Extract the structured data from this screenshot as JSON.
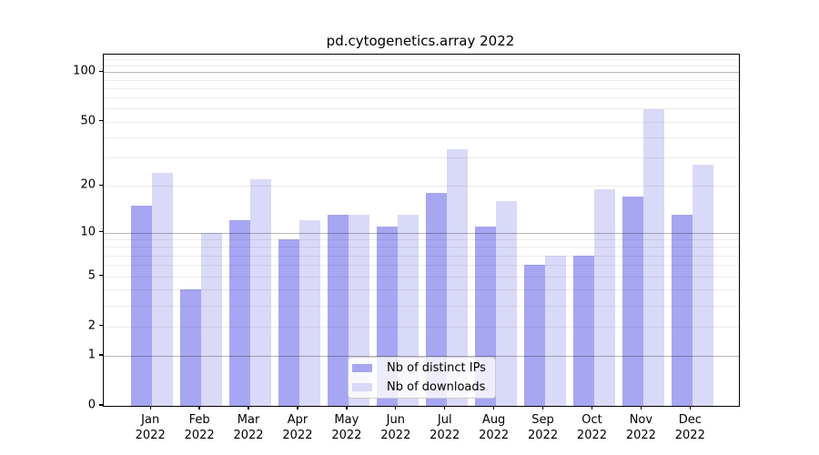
{
  "chart_data": {
    "type": "bar",
    "title": "pd.cytogenetics.array 2022",
    "categories": [
      "Jan 2022",
      "Feb 2022",
      "Mar 2022",
      "Apr 2022",
      "May 2022",
      "Jun 2022",
      "Jul 2022",
      "Aug 2022",
      "Sep 2022",
      "Oct 2022",
      "Nov 2022",
      "Dec 2022"
    ],
    "series": [
      {
        "name": "Nb of distinct IPs",
        "color": "#a6a6f2",
        "values": [
          15,
          4,
          12,
          9,
          13,
          11,
          18,
          11,
          6,
          7,
          17,
          13
        ]
      },
      {
        "name": "Nb of downloads",
        "color": "#d9d9f8",
        "values": [
          24,
          10,
          22,
          12,
          13,
          13,
          34,
          16,
          7,
          19,
          60,
          27
        ]
      }
    ],
    "xlabel": "",
    "ylabel": "",
    "yscale": "log1p",
    "ylim": [
      0,
      128
    ],
    "y_tick_values": [
      0,
      1,
      2,
      5,
      10,
      20,
      50,
      100
    ],
    "y_tick_labels": [
      "0",
      "1",
      "2",
      "5",
      "10",
      "20",
      "50",
      "100"
    ],
    "grid_major": [
      1,
      10,
      100
    ],
    "grid_minor": [
      2,
      3,
      4,
      5,
      6,
      7,
      8,
      9,
      20,
      30,
      40,
      50,
      60,
      70,
      80,
      90,
      110,
      120
    ],
    "grid": "horizontal",
    "legend_position": "lower center"
  }
}
